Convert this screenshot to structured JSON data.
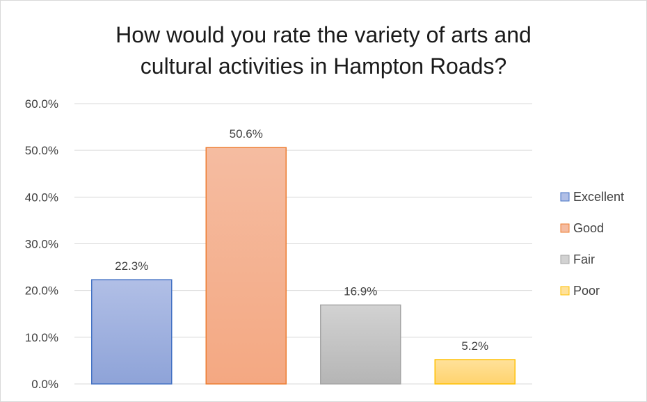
{
  "chart_data": {
    "type": "bar",
    "title_lines": [
      "How would you rate the variety of arts and",
      "cultural activities in Hampton Roads?"
    ],
    "series": [
      {
        "name": "Excellent",
        "value": 22.3,
        "label": "22.3%",
        "color": "#8ea3d8",
        "color_top": "#b1bfe6",
        "edge": "#4472c4"
      },
      {
        "name": "Good",
        "value": 50.6,
        "label": "50.6%",
        "color": "#f4a882",
        "color_top": "#f5bca1",
        "edge": "#ed7d31"
      },
      {
        "name": "Fair",
        "value": 16.9,
        "label": "16.9%",
        "color": "#b5b5b5",
        "color_top": "#d2d2d2",
        "edge": "#a5a5a5"
      },
      {
        "name": "Poor",
        "value": 5.2,
        "label": "5.2%",
        "color": "#ffd36e",
        "color_top": "#ffe19a",
        "edge": "#ffc000"
      }
    ],
    "ylim": [
      0,
      60
    ],
    "yticks": [
      {
        "value": 0,
        "label": "0.0%"
      },
      {
        "value": 10,
        "label": "10.0%"
      },
      {
        "value": 20,
        "label": "20.0%"
      },
      {
        "value": 30,
        "label": "30.0%"
      },
      {
        "value": 40,
        "label": "40.0%"
      },
      {
        "value": 50,
        "label": "50.0%"
      },
      {
        "value": 60,
        "label": "60.0%"
      }
    ],
    "grid": true,
    "legend_position": "right"
  }
}
